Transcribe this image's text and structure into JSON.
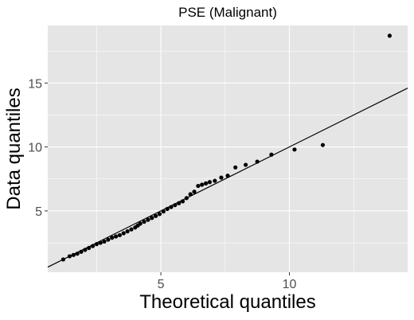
{
  "chart_data": {
    "type": "scatter",
    "title": "PSE (Malignant)",
    "xlabel": "Theoretical quantiles",
    "ylabel": "Data quantiles",
    "xlim": [
      0.6,
      14.6
    ],
    "ylim": [
      0.2,
      19.5
    ],
    "xticks": [
      5,
      10
    ],
    "yticks": [
      5,
      10,
      15
    ],
    "grid": true,
    "panel_background": "#e5e5e5",
    "grid_color": "#ffffff",
    "point_color": "#000000",
    "reference_line": {
      "slope": 1,
      "intercept": 0,
      "color": "#000000"
    },
    "points": [
      [
        1.2,
        1.2
      ],
      [
        1.45,
        1.45
      ],
      [
        1.6,
        1.55
      ],
      [
        1.75,
        1.65
      ],
      [
        1.9,
        1.8
      ],
      [
        2.05,
        1.95
      ],
      [
        2.2,
        2.1
      ],
      [
        2.35,
        2.25
      ],
      [
        2.5,
        2.4
      ],
      [
        2.65,
        2.5
      ],
      [
        2.8,
        2.6
      ],
      [
        2.95,
        2.75
      ],
      [
        3.1,
        2.9
      ],
      [
        3.25,
        3.0
      ],
      [
        3.4,
        3.1
      ],
      [
        3.55,
        3.25
      ],
      [
        3.7,
        3.4
      ],
      [
        3.85,
        3.55
      ],
      [
        4.0,
        3.7
      ],
      [
        4.1,
        3.85
      ],
      [
        4.2,
        4.0
      ],
      [
        4.35,
        4.15
      ],
      [
        4.5,
        4.3
      ],
      [
        4.65,
        4.45
      ],
      [
        4.8,
        4.6
      ],
      [
        4.95,
        4.75
      ],
      [
        5.1,
        4.95
      ],
      [
        5.25,
        5.15
      ],
      [
        5.4,
        5.3
      ],
      [
        5.55,
        5.45
      ],
      [
        5.7,
        5.6
      ],
      [
        5.85,
        5.75
      ],
      [
        6.0,
        6.0
      ],
      [
        6.15,
        6.3
      ],
      [
        6.3,
        6.5
      ],
      [
        6.45,
        6.95
      ],
      [
        6.6,
        7.05
      ],
      [
        6.75,
        7.15
      ],
      [
        6.9,
        7.25
      ],
      [
        7.1,
        7.35
      ],
      [
        7.35,
        7.6
      ],
      [
        7.6,
        7.75
      ],
      [
        7.9,
        8.4
      ],
      [
        8.3,
        8.6
      ],
      [
        8.75,
        8.85
      ],
      [
        9.3,
        9.4
      ],
      [
        10.2,
        9.8
      ],
      [
        11.3,
        10.15
      ],
      [
        13.9,
        18.7
      ]
    ]
  }
}
